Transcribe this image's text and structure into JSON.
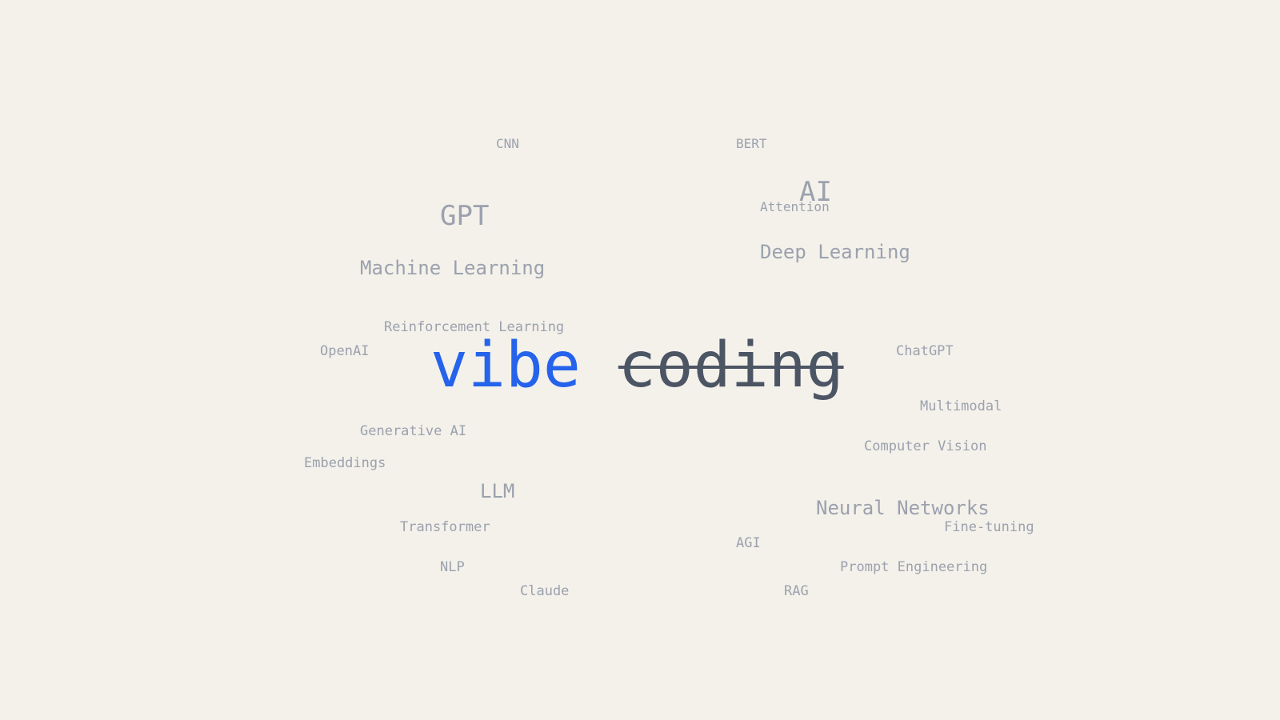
{
  "colors": {
    "background": "#f4f1eb",
    "muted_word": "#9ba1ad",
    "accent_word": "#2563eb",
    "struck_word": "#4b5563"
  },
  "headline": {
    "accent_word": "vibe",
    "struck_word": "coding"
  },
  "words": {
    "cnn": "CNN",
    "bert": "BERT",
    "ai": "AI",
    "gpt": "GPT",
    "attention": "Attention",
    "deep_learning": "Deep Learning",
    "machine_learning": "Machine Learning",
    "reinforcement_learning": "Reinforcement Learning",
    "openai": "OpenAI",
    "chatgpt": "ChatGPT",
    "multimodal": "Multimodal",
    "generative_ai": "Generative AI",
    "computer_vision": "Computer Vision",
    "embeddings": "Embeddings",
    "llm": "LLM",
    "neural_networks": "Neural Networks",
    "transformer": "Transformer",
    "fine_tuning": "Fine-tuning",
    "agi": "AGI",
    "nlp": "NLP",
    "prompt_engineering": "Prompt Engineering",
    "claude": "Claude",
    "rag": "RAG"
  }
}
